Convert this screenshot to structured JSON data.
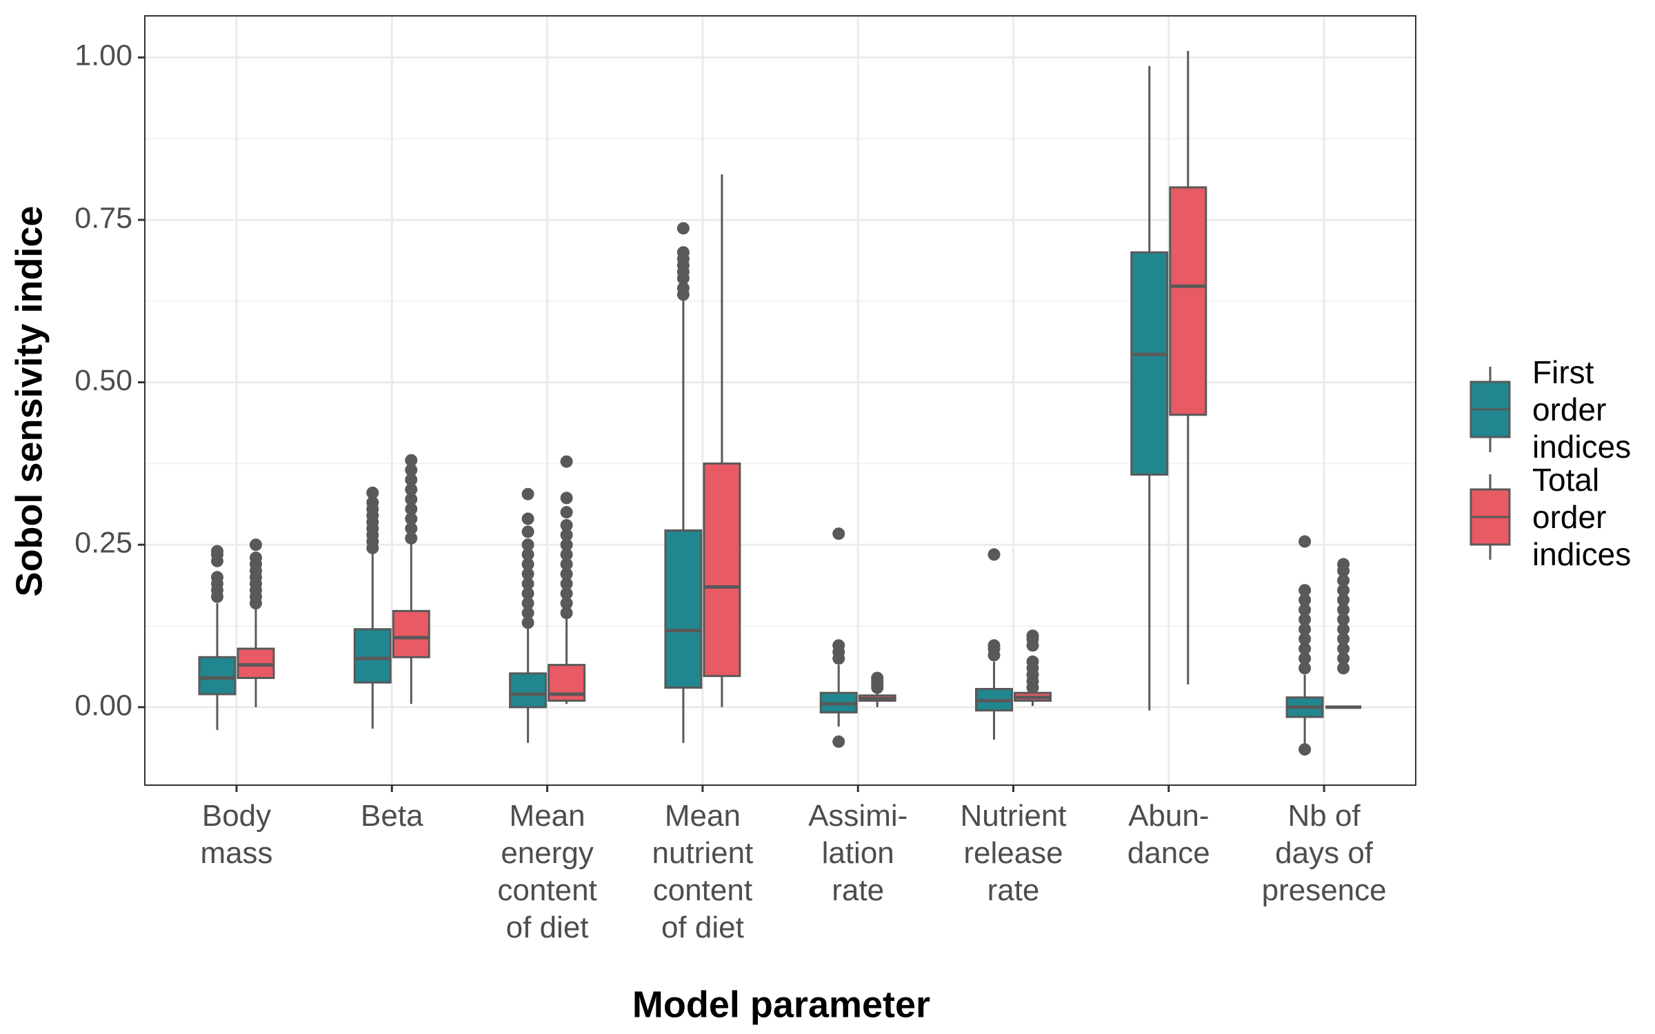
{
  "chart_data": {
    "type": "box",
    "x_label": "Model parameter",
    "y_label": "Sobol sensivity indice",
    "categories": [
      "Body mass",
      "Beta",
      "Mean energy content of diet",
      "Mean nutrient content of diet",
      "Assimi-lation rate",
      "Nutrient release rate",
      "Abun-dance",
      "Nb of days of presence"
    ],
    "ylim": [
      -0.12,
      1.064
    ],
    "yticks": [
      {
        "value": 0,
        "label": "0.00"
      },
      {
        "value": 0.25,
        "label": "0.25"
      },
      {
        "value": 0.5,
        "label": "0.50"
      },
      {
        "value": 0.75,
        "label": "0.75"
      },
      {
        "value": 1,
        "label": "1.00"
      }
    ],
    "y_minor_grid": [
      0.125,
      0.375,
      0.625,
      0.875
    ],
    "grid": true,
    "legend_position": "right",
    "series": [
      {
        "name": "First order indices",
        "color": "#21868f",
        "boxes": [
          {
            "low": -0.035,
            "q1": 0.02,
            "median": 0.045,
            "q3": 0.077,
            "high": 0.16,
            "outliers": [
              0.17,
              0.18,
              0.19,
              0.2,
              0.225,
              0.235,
              0.24
            ]
          },
          {
            "low": -0.033,
            "q1": 0.038,
            "median": 0.075,
            "q3": 0.12,
            "high": 0.24,
            "outliers": [
              0.245,
              0.255,
              0.265,
              0.275,
              0.285,
              0.295,
              0.305,
              0.315,
              0.33
            ]
          },
          {
            "low": -0.055,
            "q1": 0.0,
            "median": 0.02,
            "q3": 0.052,
            "high": 0.125,
            "outliers": [
              0.13,
              0.145,
              0.16,
              0.175,
              0.19,
              0.205,
              0.22,
              0.235,
              0.25,
              0.27,
              0.29,
              0.328
            ]
          },
          {
            "low": -0.055,
            "q1": 0.03,
            "median": 0.118,
            "q3": 0.272,
            "high": 0.63,
            "outliers": [
              0.635,
              0.645,
              0.66,
              0.67,
              0.68,
              0.69,
              0.7,
              0.737
            ]
          },
          {
            "low": -0.03,
            "q1": -0.008,
            "median": 0.005,
            "q3": 0.022,
            "high": 0.065,
            "outliers": [
              -0.053,
              0.075,
              0.085,
              0.095,
              0.267
            ]
          },
          {
            "low": -0.05,
            "q1": -0.005,
            "median": 0.01,
            "q3": 0.028,
            "high": 0.07,
            "outliers": [
              0.08,
              0.09,
              0.095,
              0.235
            ]
          },
          {
            "low": -0.005,
            "q1": 0.358,
            "median": 0.543,
            "q3": 0.7,
            "high": 0.987,
            "outliers": []
          },
          {
            "low": -0.06,
            "q1": -0.015,
            "median": 0.0,
            "q3": 0.015,
            "high": 0.05,
            "outliers": [
              -0.065,
              0.06,
              0.075,
              0.09,
              0.105,
              0.12,
              0.135,
              0.15,
              0.165,
              0.18,
              0.255
            ]
          }
        ]
      },
      {
        "name": "Total order indices",
        "color": "#e85a64",
        "boxes": [
          {
            "low": 0.0,
            "q1": 0.045,
            "median": 0.065,
            "q3": 0.09,
            "high": 0.155,
            "outliers": [
              0.16,
              0.17,
              0.18,
              0.19,
              0.2,
              0.21,
              0.22,
              0.23,
              0.25
            ]
          },
          {
            "low": 0.005,
            "q1": 0.077,
            "median": 0.107,
            "q3": 0.148,
            "high": 0.255,
            "outliers": [
              0.26,
              0.275,
              0.29,
              0.305,
              0.32,
              0.335,
              0.35,
              0.365,
              0.38
            ]
          },
          {
            "low": 0.005,
            "q1": 0.01,
            "median": 0.02,
            "q3": 0.065,
            "high": 0.14,
            "outliers": [
              0.145,
              0.16,
              0.175,
              0.19,
              0.205,
              0.22,
              0.235,
              0.25,
              0.265,
              0.28,
              0.3,
              0.322,
              0.378
            ]
          },
          {
            "low": 0.0,
            "q1": 0.048,
            "median": 0.185,
            "q3": 0.375,
            "high": 0.82,
            "outliers": []
          },
          {
            "low": 0.0,
            "q1": 0.01,
            "median": 0.013,
            "q3": 0.018,
            "high": 0.026,
            "outliers": [
              0.03,
              0.035,
              0.04,
              0.045
            ]
          },
          {
            "low": 0.002,
            "q1": 0.01,
            "median": 0.015,
            "q3": 0.022,
            "high": 0.025,
            "outliers": [
              0.03,
              0.04,
              0.05,
              0.06,
              0.07,
              0.095,
              0.105,
              0.11
            ]
          },
          {
            "low": 0.035,
            "q1": 0.45,
            "median": 0.648,
            "q3": 0.8,
            "high": 1.01,
            "outliers": []
          },
          {
            "low": 0.0,
            "q1": 0.0,
            "median": 0.0,
            "q3": 0.0,
            "high": 0.0,
            "outliers": [
              0.06,
              0.075,
              0.09,
              0.105,
              0.12,
              0.135,
              0.15,
              0.165,
              0.18,
              0.195,
              0.21,
              0.22
            ]
          }
        ]
      }
    ]
  }
}
